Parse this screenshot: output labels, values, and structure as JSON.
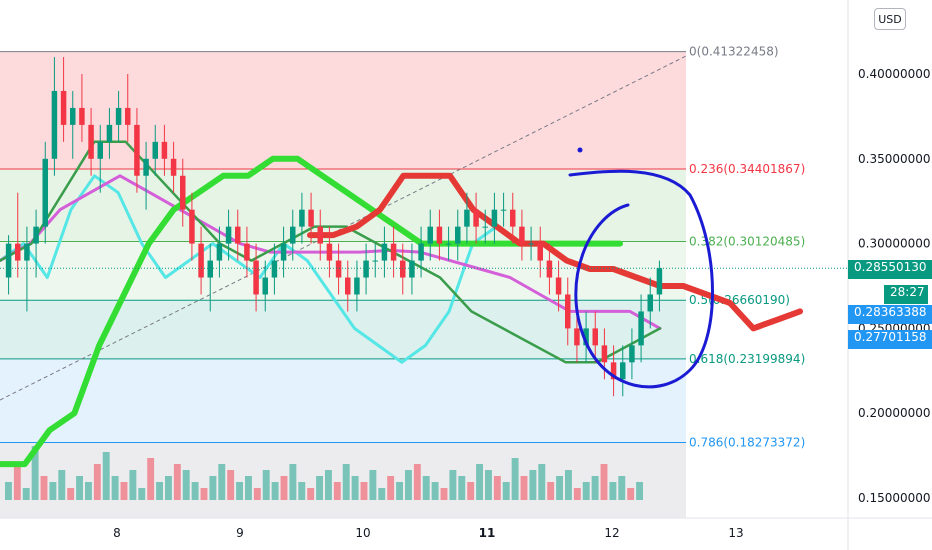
{
  "currency_button": "USD",
  "chart_data": {
    "type": "candlestick",
    "title": "",
    "x_ticks": [
      "8",
      "9",
      "10",
      "11",
      "12",
      "13"
    ],
    "y_ticks": [
      "0.40000000",
      "0.35000000",
      "0.30000000",
      "0.25000000",
      "0.20000000",
      "0.15000000"
    ],
    "ylim": [
      0.14,
      0.425
    ],
    "fib_levels": [
      {
        "ratio_label": "0",
        "value": 0.41322458,
        "text": "0(0.41322458)",
        "color": "#787b86"
      },
      {
        "ratio_label": "0.236",
        "value": 0.34401867,
        "text": "0.236(0.34401867)",
        "color": "#f23645"
      },
      {
        "ratio_label": "0.382",
        "value": 0.30120485,
        "text": "0.382(0.30120485)",
        "color": "#4caf50"
      },
      {
        "ratio_label": "0.5",
        "value": 0.2666019,
        "text": "0.5(0.26660190)",
        "color": "#089981"
      },
      {
        "ratio_label": "0.618",
        "value": 0.23199894,
        "text": "0.618(0.23199894)",
        "color": "#089981"
      },
      {
        "ratio_label": "0.786",
        "value": 0.18273372,
        "text": "0.786(0.18273372)",
        "color": "#2196f3"
      }
    ],
    "price_tags": [
      {
        "label": "0.28550130",
        "color": "#089981"
      },
      {
        "label": "28:27",
        "color": "#089981"
      },
      {
        "label": "0.28363388",
        "color": "#2196f3"
      },
      {
        "label": "0.27701158",
        "color": "#2196f3"
      }
    ],
    "current_price": 0.2855013,
    "candles": [
      [
        0.28,
        0.305,
        0.27,
        0.3
      ],
      [
        0.3,
        0.33,
        0.28,
        0.29
      ],
      [
        0.29,
        0.31,
        0.26,
        0.3
      ],
      [
        0.3,
        0.32,
        0.28,
        0.31
      ],
      [
        0.31,
        0.36,
        0.3,
        0.35
      ],
      [
        0.35,
        0.41,
        0.34,
        0.39
      ],
      [
        0.39,
        0.41,
        0.36,
        0.37
      ],
      [
        0.37,
        0.39,
        0.35,
        0.38
      ],
      [
        0.38,
        0.4,
        0.36,
        0.37
      ],
      [
        0.37,
        0.38,
        0.34,
        0.35
      ],
      [
        0.35,
        0.37,
        0.33,
        0.36
      ],
      [
        0.36,
        0.38,
        0.35,
        0.37
      ],
      [
        0.37,
        0.39,
        0.36,
        0.38
      ],
      [
        0.38,
        0.4,
        0.36,
        0.37
      ],
      [
        0.37,
        0.38,
        0.33,
        0.34
      ],
      [
        0.34,
        0.36,
        0.32,
        0.35
      ],
      [
        0.35,
        0.37,
        0.34,
        0.36
      ],
      [
        0.36,
        0.37,
        0.34,
        0.35
      ],
      [
        0.35,
        0.36,
        0.33,
        0.34
      ],
      [
        0.34,
        0.35,
        0.31,
        0.32
      ],
      [
        0.32,
        0.33,
        0.29,
        0.3
      ],
      [
        0.3,
        0.31,
        0.27,
        0.28
      ],
      [
        0.28,
        0.3,
        0.26,
        0.29
      ],
      [
        0.29,
        0.31,
        0.28,
        0.3
      ],
      [
        0.3,
        0.32,
        0.29,
        0.31
      ],
      [
        0.31,
        0.32,
        0.29,
        0.3
      ],
      [
        0.3,
        0.31,
        0.28,
        0.29
      ],
      [
        0.29,
        0.3,
        0.26,
        0.27
      ],
      [
        0.27,
        0.29,
        0.26,
        0.28
      ],
      [
        0.28,
        0.3,
        0.27,
        0.29
      ],
      [
        0.29,
        0.31,
        0.28,
        0.3
      ],
      [
        0.3,
        0.32,
        0.29,
        0.31
      ],
      [
        0.31,
        0.33,
        0.3,
        0.32
      ],
      [
        0.32,
        0.33,
        0.3,
        0.31
      ],
      [
        0.31,
        0.32,
        0.29,
        0.3
      ],
      [
        0.3,
        0.31,
        0.28,
        0.29
      ],
      [
        0.29,
        0.3,
        0.27,
        0.28
      ],
      [
        0.28,
        0.29,
        0.26,
        0.27
      ],
      [
        0.27,
        0.29,
        0.26,
        0.28
      ],
      [
        0.28,
        0.3,
        0.27,
        0.29
      ],
      [
        0.29,
        0.3,
        0.28,
        0.29
      ],
      [
        0.29,
        0.31,
        0.28,
        0.3
      ],
      [
        0.3,
        0.31,
        0.28,
        0.29
      ],
      [
        0.29,
        0.3,
        0.27,
        0.28
      ],
      [
        0.28,
        0.3,
        0.27,
        0.29
      ],
      [
        0.29,
        0.31,
        0.28,
        0.3
      ],
      [
        0.3,
        0.32,
        0.29,
        0.31
      ],
      [
        0.31,
        0.32,
        0.29,
        0.3
      ],
      [
        0.3,
        0.31,
        0.29,
        0.3
      ],
      [
        0.3,
        0.32,
        0.29,
        0.31
      ],
      [
        0.31,
        0.33,
        0.3,
        0.32
      ],
      [
        0.32,
        0.33,
        0.3,
        0.31
      ],
      [
        0.31,
        0.32,
        0.3,
        0.31
      ],
      [
        0.31,
        0.33,
        0.3,
        0.32
      ],
      [
        0.32,
        0.33,
        0.31,
        0.32
      ],
      [
        0.32,
        0.33,
        0.3,
        0.31
      ],
      [
        0.31,
        0.32,
        0.29,
        0.3
      ],
      [
        0.3,
        0.31,
        0.29,
        0.3
      ],
      [
        0.3,
        0.31,
        0.28,
        0.29
      ],
      [
        0.29,
        0.3,
        0.27,
        0.28
      ],
      [
        0.28,
        0.29,
        0.26,
        0.27
      ],
      [
        0.27,
        0.28,
        0.24,
        0.25
      ],
      [
        0.25,
        0.26,
        0.23,
        0.24
      ],
      [
        0.24,
        0.26,
        0.23,
        0.25
      ],
      [
        0.25,
        0.26,
        0.23,
        0.24
      ],
      [
        0.24,
        0.25,
        0.22,
        0.23
      ],
      [
        0.23,
        0.24,
        0.21,
        0.22
      ],
      [
        0.22,
        0.24,
        0.21,
        0.23
      ],
      [
        0.23,
        0.25,
        0.22,
        0.24
      ],
      [
        0.24,
        0.27,
        0.23,
        0.26
      ],
      [
        0.26,
        0.28,
        0.25,
        0.27
      ],
      [
        0.27,
        0.29,
        0.26,
        0.2855
      ]
    ],
    "volumes": [
      3,
      6,
      2,
      9,
      4,
      3,
      5,
      2,
      4,
      3,
      6,
      8,
      4,
      3,
      5,
      2,
      7,
      3,
      4,
      6,
      5,
      3,
      2,
      4,
      6,
      5,
      3,
      4,
      2,
      5,
      3,
      4,
      6,
      3,
      2,
      4,
      5,
      3,
      6,
      4,
      3,
      5,
      2,
      4,
      3,
      5,
      6,
      4,
      3,
      2,
      5,
      4,
      3,
      6,
      5,
      4,
      3,
      7,
      4,
      5,
      6,
      3,
      4,
      5,
      2,
      3,
      4,
      6,
      3,
      4,
      2,
      3
    ],
    "series": {
      "ichimoku_span_green": [
        0.17,
        0.17,
        0.19,
        0.2,
        0.24,
        0.27,
        0.3,
        0.32,
        0.33,
        0.34,
        0.34,
        0.35,
        0.35,
        0.34,
        0.33,
        0.32,
        0.31,
        0.3,
        0.3,
        0.3,
        0.3,
        0.3,
        0.3,
        0.3,
        0.3,
        0.3
      ],
      "ichimoku_span_red": [
        0.305,
        0.305,
        0.31,
        0.32,
        0.34,
        0.34,
        0.34,
        0.32,
        0.31,
        0.3,
        0.3,
        0.29,
        0.285,
        0.285,
        0.28,
        0.275,
        0.275,
        0.27,
        0.265,
        0.25,
        0.255,
        0.26
      ],
      "cyan_lag": [
        0.29,
        0.3,
        0.28,
        0.32,
        0.34,
        0.33,
        0.3,
        0.28,
        0.29,
        0.3,
        0.29,
        0.28,
        0.3,
        0.29,
        0.27,
        0.25,
        0.24,
        0.23,
        0.24,
        0.26,
        0.3,
        0.31,
        0.3
      ],
      "magenta_ma": [
        0.29,
        0.3,
        0.32,
        0.33,
        0.34,
        0.33,
        0.32,
        0.31,
        0.3,
        0.295,
        0.295,
        0.295,
        0.295,
        0.296,
        0.295,
        0.29,
        0.285,
        0.28,
        0.27,
        0.26,
        0.26,
        0.26,
        0.25
      ],
      "green_ma": [
        0.29,
        0.3,
        0.33,
        0.36,
        0.36,
        0.34,
        0.32,
        0.3,
        0.29,
        0.3,
        0.31,
        0.31,
        0.3,
        0.29,
        0.28,
        0.26,
        0.25,
        0.24,
        0.23,
        0.23,
        0.24,
        0.25
      ]
    }
  }
}
